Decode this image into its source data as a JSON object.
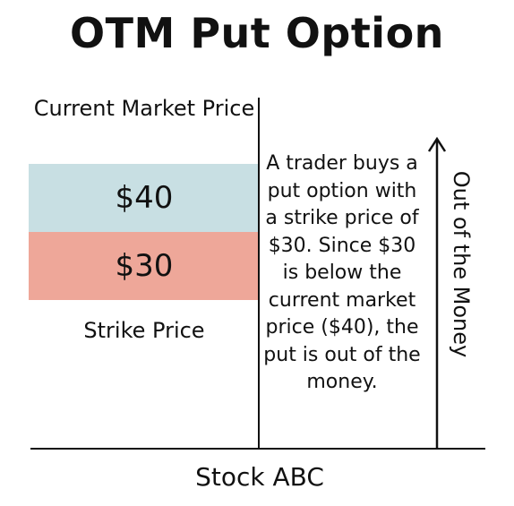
{
  "title": "OTM Put Option",
  "current_market_price": {
    "label": "Current Market Price",
    "value": "$40",
    "color": "#c8dfe3"
  },
  "strike_price": {
    "label": "Strike Price",
    "value": "$30",
    "color": "#eea799"
  },
  "explanation": "A trader buys a put option with a strike price of $30. Since $30 is below the current market price ($40), the put is out of the money.",
  "axis_label": "Out of the Money",
  "stock_label": "Stock ABC",
  "colors": {
    "background": "#ffffff",
    "text": "#111111"
  }
}
